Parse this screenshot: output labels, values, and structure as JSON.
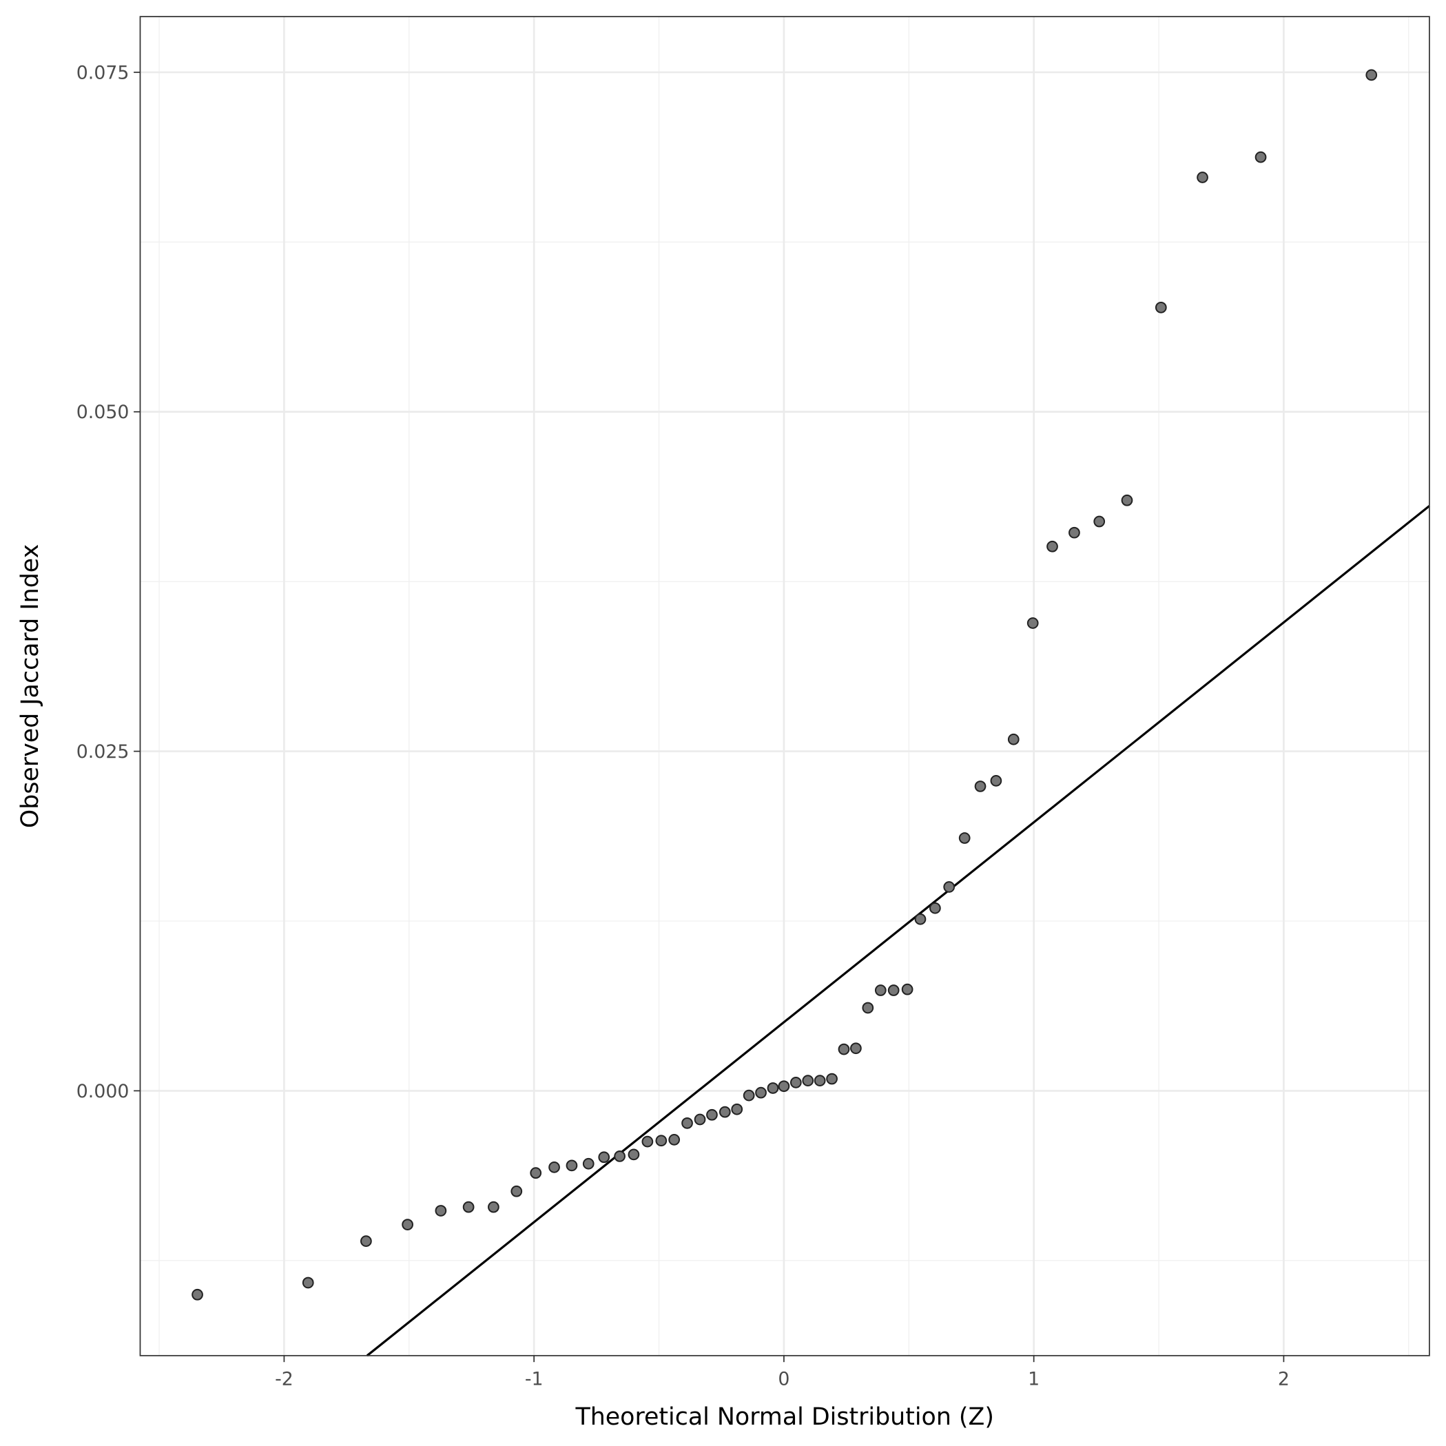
{
  "chart_data": {
    "type": "scatter",
    "title": "",
    "xlabel": "Theoretical Normal Distribution (Z)",
    "ylabel": "Observed Jaccard Index",
    "xlim": [
      -2.576,
      2.583
    ],
    "ylim": [
      -0.0195,
      0.0791
    ],
    "x_ticks": [
      -2,
      -1,
      0,
      1,
      2
    ],
    "x_tick_labels": [
      "-2",
      "-1",
      "0",
      "1",
      "2"
    ],
    "y_ticks": [
      0.0,
      0.025,
      0.05,
      0.075
    ],
    "y_tick_labels": [
      "0.000",
      "0.025",
      "0.050",
      "0.075"
    ],
    "grid": true,
    "legend": "none",
    "point_color": "#777777",
    "line_color": "#000000",
    "reference_line": {
      "intercept": 0.00505,
      "slope": 0.01472
    },
    "points": [
      [
        -2.347,
        -0.01501
      ],
      [
        -1.904,
        -0.01413
      ],
      [
        -1.672,
        -0.01107
      ],
      [
        -1.506,
        -0.00985
      ],
      [
        -1.373,
        -0.00883
      ],
      [
        -1.262,
        -0.00856
      ],
      [
        -1.162,
        -0.00856
      ],
      [
        -1.07,
        -0.0074
      ],
      [
        -0.993,
        -0.00605
      ],
      [
        -0.919,
        -0.00563
      ],
      [
        -0.849,
        -0.0055
      ],
      [
        -0.782,
        -0.00537
      ],
      [
        -0.72,
        -0.00489
      ],
      [
        -0.657,
        -0.00482
      ],
      [
        -0.601,
        -0.00469
      ],
      [
        -0.546,
        -0.00374
      ],
      [
        -0.491,
        -0.00367
      ],
      [
        -0.439,
        -0.0036
      ],
      [
        -0.387,
        -0.00238
      ],
      [
        -0.336,
        -0.00211
      ],
      [
        -0.288,
        -0.00177
      ],
      [
        -0.236,
        -0.00156
      ],
      [
        -0.188,
        -0.00136
      ],
      [
        -0.14,
        -0.00034
      ],
      [
        -0.092,
        -0.00014
      ],
      [
        -0.044,
        0.0002
      ],
      [
        0.0,
        0.00034
      ],
      [
        0.048,
        0.00061
      ],
      [
        0.096,
        0.00075
      ],
      [
        0.144,
        0.00075
      ],
      [
        0.192,
        0.00088
      ],
      [
        0.24,
        0.00306
      ],
      [
        0.288,
        0.00313
      ],
      [
        0.336,
        0.00611
      ],
      [
        0.387,
        0.0074
      ],
      [
        0.439,
        0.0074
      ],
      [
        0.494,
        0.00747
      ],
      [
        0.546,
        0.01264
      ],
      [
        0.605,
        0.01345
      ],
      [
        0.661,
        0.01501
      ],
      [
        0.723,
        0.01861
      ],
      [
        0.786,
        0.02242
      ],
      [
        0.849,
        0.02283
      ],
      [
        0.919,
        0.02588
      ],
      [
        0.996,
        0.03444
      ],
      [
        1.074,
        0.04008
      ],
      [
        1.162,
        0.0411
      ],
      [
        1.262,
        0.04192
      ],
      [
        1.373,
        0.04348
      ],
      [
        1.509,
        0.05768
      ],
      [
        1.675,
        0.06726
      ],
      [
        1.908,
        0.06875
      ],
      [
        2.351,
        0.0748
      ]
    ]
  }
}
